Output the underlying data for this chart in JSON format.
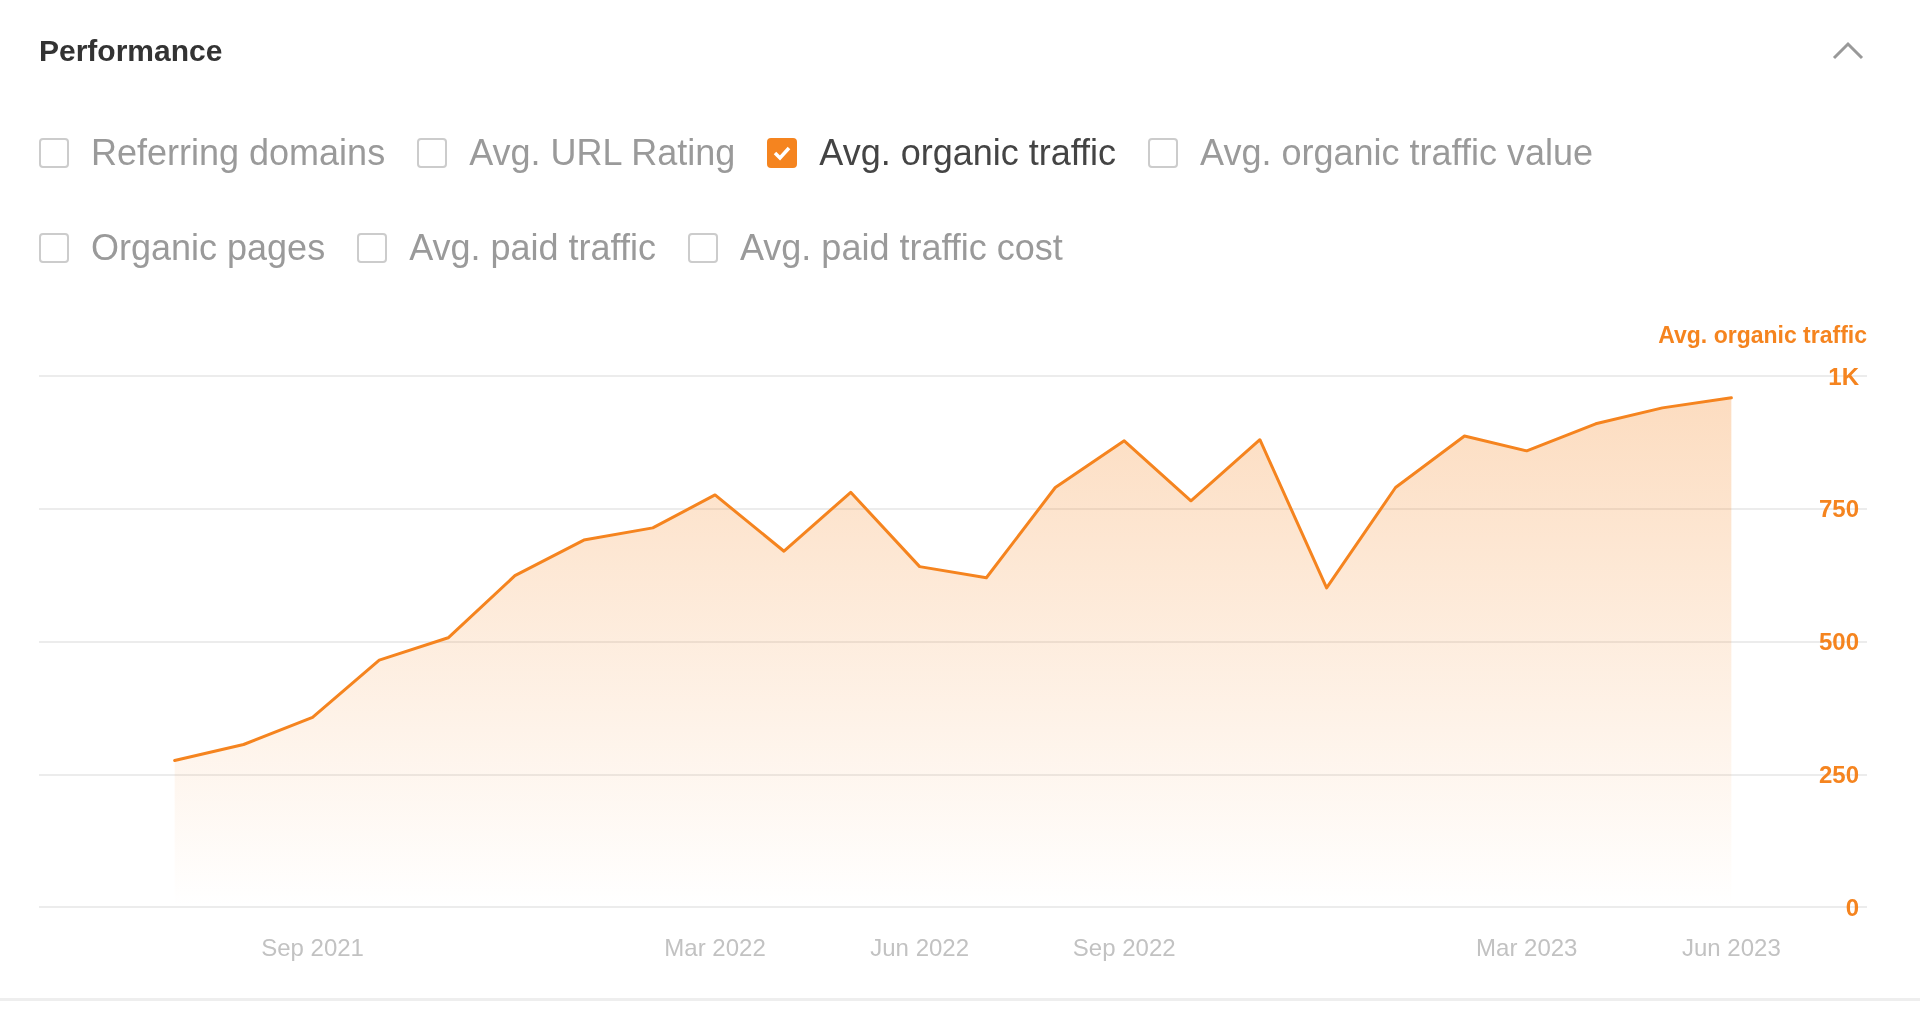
{
  "chart_data": {
    "type": "area",
    "title": "Performance",
    "ylabel": "Avg. organic traffic",
    "annotations": [
      "Referring domains",
      "Avg. URL Rating",
      "Avg. organic traffic value",
      "Organic pages",
      "Avg. paid traffic",
      "Avg. paid traffic cost"
    ],
    "x": [
      "2021-07",
      "2021-08",
      "2021-09",
      "2021-10",
      "2021-11",
      "2021-12",
      "2022-01",
      "2022-02",
      "2022-03",
      "2022-04",
      "2022-05",
      "2022-06",
      "2022-07",
      "2022-08",
      "2022-09",
      "2022-10",
      "2022-11",
      "2022-12",
      "2023-01",
      "2023-02",
      "2023-03",
      "2023-04",
      "2023-05",
      "2023-06"
    ],
    "series": [
      {
        "name": "Avg. organic traffic",
        "color": "#f5841f",
        "values": [
          276,
          306,
          357,
          465,
          507,
          624,
          691,
          714,
          776,
          670,
          781,
          641,
          620,
          790,
          878,
          765,
          880,
          601,
          790,
          887,
          859,
          910,
          940,
          959
        ]
      }
    ],
    "xlim": [
      "2021-05",
      "2023-08"
    ],
    "xticks": [
      {
        "value": "2021-09",
        "label": "Sep 2021"
      },
      {
        "value": "2022-03",
        "label": "Mar 2022"
      },
      {
        "value": "2022-06",
        "label": "Jun 2022"
      },
      {
        "value": "2022-09",
        "label": "Sep 2022"
      },
      {
        "value": "2023-03",
        "label": "Mar 2023"
      },
      {
        "value": "2023-06",
        "label": "Jun 2023"
      }
    ],
    "ylim": [
      0,
      1000
    ],
    "yticks": [
      0,
      250,
      500,
      750,
      {
        "value": 1000,
        "label": "1K"
      }
    ],
    "grid": "y",
    "legend": "top left",
    "marker": "none",
    "line_style": "solid"
  }
}
